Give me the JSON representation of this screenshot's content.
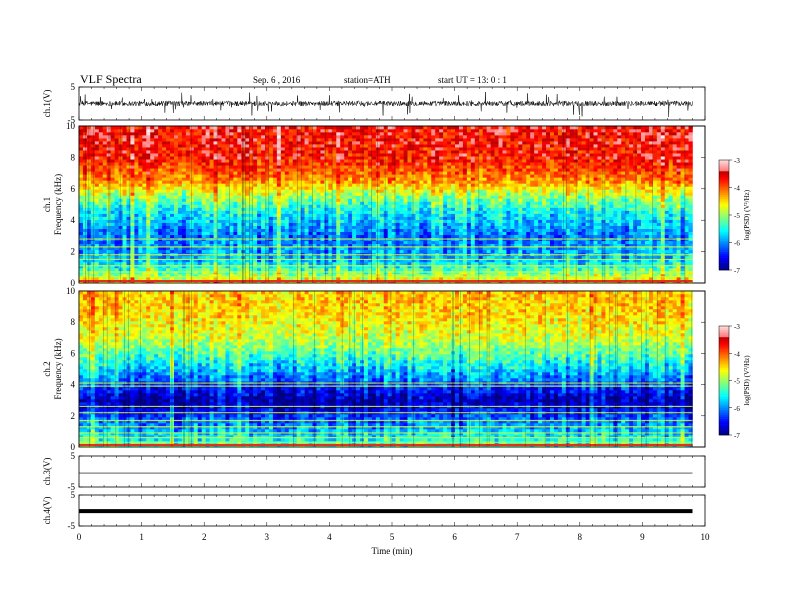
{
  "header": {
    "title": "VLF  Spectra",
    "date": "Sep. 6  , 2016",
    "station": "station=ATH",
    "start": "start  UT  =   13: 0  : 1"
  },
  "chart_data": [
    {
      "type": "line",
      "panel": "ch1-waveform",
      "ylabel": "ch.1(V)",
      "ylim": [
        -5,
        5
      ],
      "ytick_labels": [
        "5",
        "-5"
      ],
      "xlim": [
        0,
        10
      ],
      "data_end": 9.8,
      "series": [
        {
          "values_description_level": 0,
          "noise_amplitude": 0.9
        }
      ]
    },
    {
      "type": "heatmap",
      "panel": "ch1-spectrogram",
      "ylabel": "ch.1\nFrequency  (kHz)",
      "ylim": [
        0,
        10
      ],
      "ytick_labels": [
        "0",
        "2",
        "4",
        "6",
        "8",
        "10"
      ],
      "xlim": [
        0,
        10
      ],
      "data_end": 9.8,
      "colorbar": {
        "label": "log(PSD) (V²/Hz)",
        "range": [
          -7,
          -3
        ],
        "tick_labels": [
          "-3",
          "-4",
          "-5",
          "-6",
          "-7"
        ]
      },
      "level_profile": [
        {
          "freq_khz": 0,
          "log_psd": -4.3
        },
        {
          "freq_khz": 0.5,
          "log_psd": -5.0
        },
        {
          "freq_khz": 1.5,
          "log_psd": -5.8
        },
        {
          "freq_khz": 3.0,
          "log_psd": -6.1
        },
        {
          "freq_khz": 4.5,
          "log_psd": -5.6
        },
        {
          "freq_khz": 5.5,
          "log_psd": -5.0
        },
        {
          "freq_khz": 6.5,
          "log_psd": -4.2
        },
        {
          "freq_khz": 8.0,
          "log_psd": -3.7
        },
        {
          "freq_khz": 10.0,
          "log_psd": -3.6
        }
      ],
      "lines_khz": [
        0.4,
        0.7,
        1.1,
        1.5,
        1.8,
        2.3,
        2.8
      ]
    },
    {
      "type": "heatmap",
      "panel": "ch2-spectrogram",
      "ylabel": "ch.2\nFrequency  (kHz)",
      "ylim": [
        0,
        10
      ],
      "ytick_labels": [
        "0",
        "2",
        "4",
        "6",
        "8",
        "10"
      ],
      "xlim": [
        0,
        10
      ],
      "data_end": 9.8,
      "colorbar": {
        "label": "log(PSD) (V²/Hz)",
        "range": [
          -7,
          -3
        ],
        "tick_labels": [
          "-3",
          "-4",
          "-5",
          "-6",
          "-7"
        ]
      },
      "level_profile": [
        {
          "freq_khz": 0,
          "log_psd": -5.2
        },
        {
          "freq_khz": 1.0,
          "log_psd": -5.8
        },
        {
          "freq_khz": 2.0,
          "log_psd": -6.3
        },
        {
          "freq_khz": 3.0,
          "log_psd": -6.9
        },
        {
          "freq_khz": 4.0,
          "log_psd": -6.3
        },
        {
          "freq_khz": 5.5,
          "log_psd": -5.5
        },
        {
          "freq_khz": 7.0,
          "log_psd": -4.8
        },
        {
          "freq_khz": 8.5,
          "log_psd": -4.5
        },
        {
          "freq_khz": 10.0,
          "log_psd": -4.4
        }
      ],
      "lines_khz": [
        0.3,
        0.6,
        0.9,
        1.3,
        1.7,
        2.2,
        2.6,
        3.9,
        4.1
      ]
    },
    {
      "type": "line",
      "panel": "ch3-waveform",
      "ylabel": "ch.3(V)",
      "ylim": [
        -5,
        5
      ],
      "ytick_labels": [
        "5",
        "-5"
      ],
      "xlim": [
        0,
        10
      ],
      "data_end": 9.8,
      "series": [
        {
          "level": 0,
          "noise_amplitude": 0.0
        }
      ]
    },
    {
      "type": "line",
      "panel": "ch4-waveform",
      "ylabel": "ch.4(V)",
      "ylim": [
        -5,
        5
      ],
      "ytick_labels": [
        "5",
        "-5"
      ],
      "xlim": [
        0,
        10
      ],
      "data_end": 9.8,
      "series": [
        {
          "level": 0,
          "noise_amplitude": 0.25
        }
      ]
    }
  ],
  "x_axis": {
    "label": "Time  (min)",
    "tick_labels": [
      "0",
      "1",
      "2",
      "3",
      "4",
      "5",
      "6",
      "7",
      "8",
      "9",
      "10"
    ]
  }
}
